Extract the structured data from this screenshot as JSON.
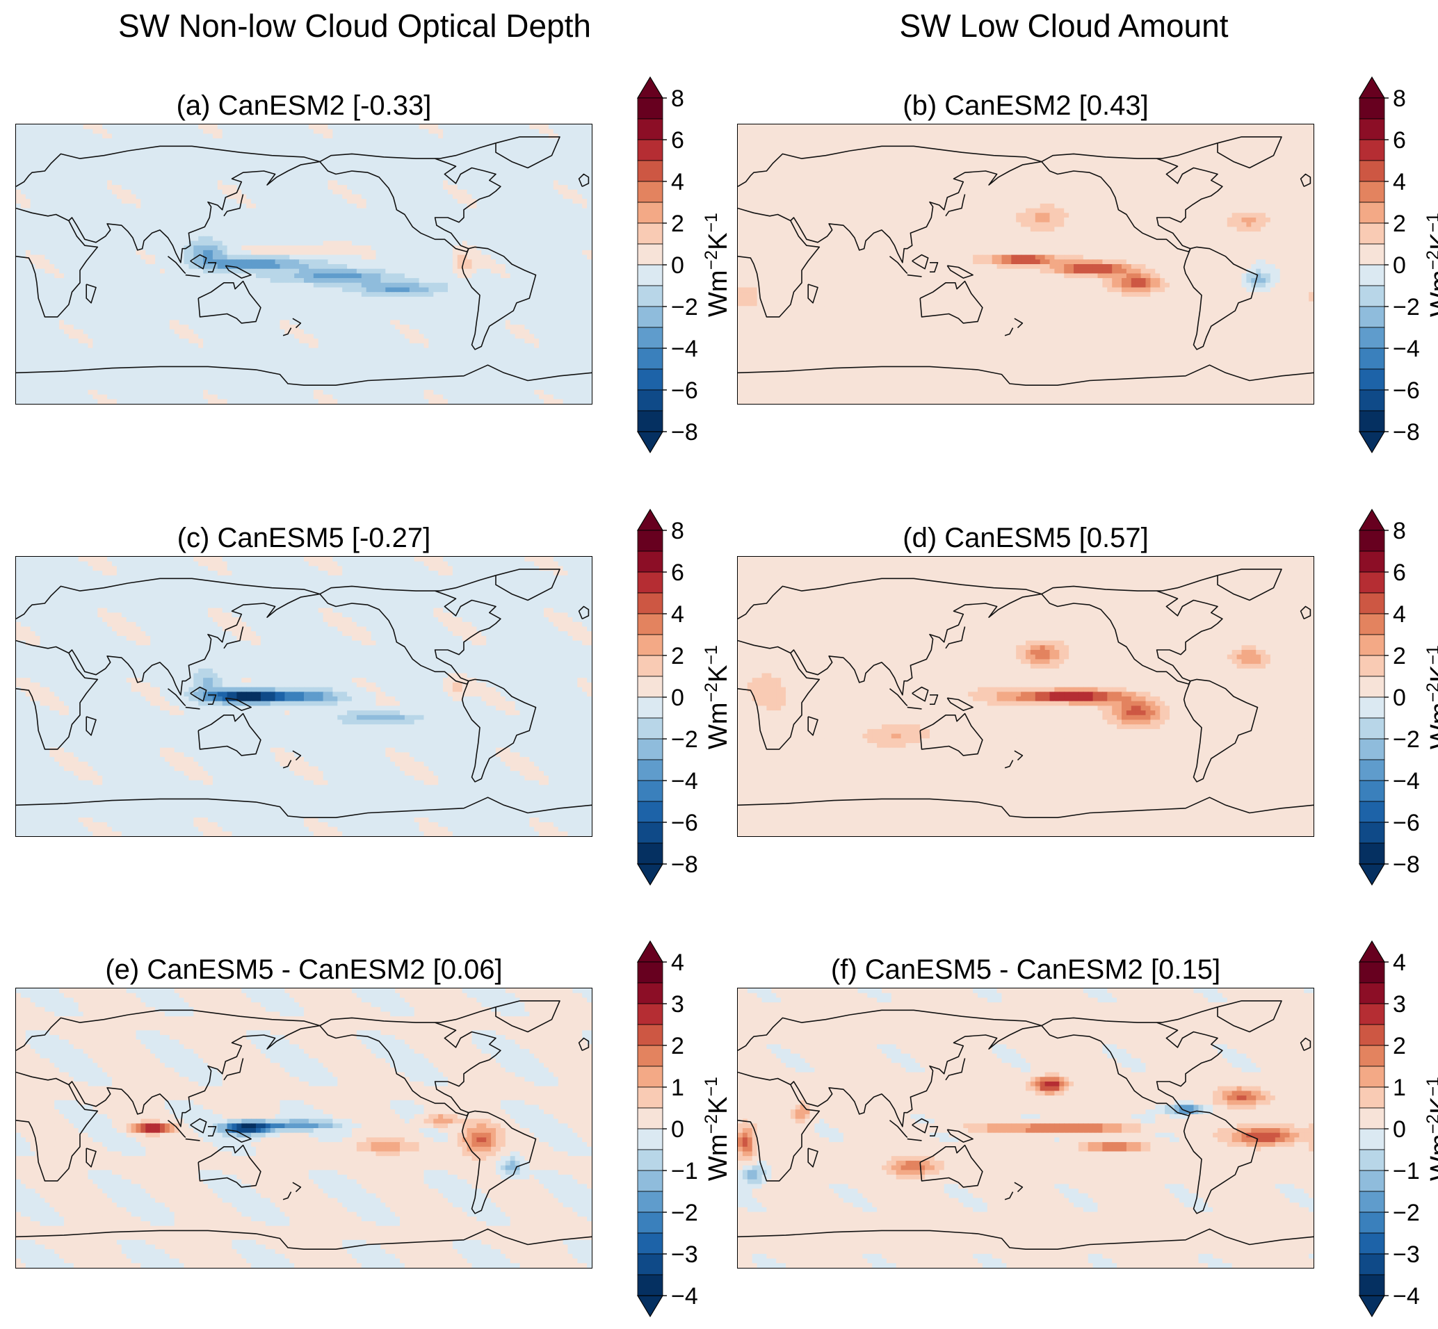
{
  "column_titles": {
    "left": "SW Non-low Cloud Optical Depth",
    "right": "SW Low Cloud Amount"
  },
  "colorbar_unit": {
    "base1": "Wm",
    "exp1": "−2",
    "base2": "K",
    "exp2": "−1"
  },
  "chart_data": [
    {
      "type": "heatmap",
      "title": "(a) CanESM2 [-0.33]",
      "model": "CanESM2",
      "global_mean": -0.33,
      "column": "SW Non-low Cloud Optical Depth",
      "colorbar_ticks": [
        "8",
        "6",
        "4",
        "2",
        "0",
        "−2",
        "−4",
        "−6",
        "−8"
      ],
      "colorbar_range": [
        -8,
        8
      ],
      "unit": "Wm⁻²K⁻¹",
      "colormap": "RdBu_r",
      "features": [
        {
          "lon": 150,
          "lat": 0,
          "value": -4,
          "spread_lon": 30,
          "spread_lat": 4
        },
        {
          "lon": 200,
          "lat": -8,
          "value": -3,
          "spread_lon": 40,
          "spread_lat": 5
        },
        {
          "lon": 240,
          "lat": -16,
          "value": -3,
          "spread_lon": 25,
          "spread_lat": 4
        },
        {
          "lon": 120,
          "lat": 8,
          "value": -2.5,
          "spread_lon": 12,
          "spread_lat": 8
        },
        {
          "lon": 180,
          "lat": 10,
          "value": 1.5,
          "spread_lon": 25,
          "spread_lat": 3
        },
        {
          "lon": 280,
          "lat": 0,
          "value": 2,
          "spread_lon": 6,
          "spread_lat": 8
        }
      ]
    },
    {
      "type": "heatmap",
      "title": "(b) CanESM2 [0.43]",
      "model": "CanESM2",
      "global_mean": 0.43,
      "column": "SW Low Cloud Amount",
      "colorbar_ticks": [
        "8",
        "6",
        "4",
        "2",
        "0",
        "−2",
        "−4",
        "−6",
        "−8"
      ],
      "colorbar_range": [
        -8,
        8
      ],
      "unit": "Wm⁻²K⁻¹",
      "colormap": "RdBu_r",
      "features": [
        {
          "lon": 180,
          "lat": 3,
          "value": 5.5,
          "spread_lon": 20,
          "spread_lat": 3
        },
        {
          "lon": 220,
          "lat": -3,
          "value": 5,
          "spread_lon": 25,
          "spread_lat": 4
        },
        {
          "lon": 250,
          "lat": -12,
          "value": 4,
          "spread_lon": 15,
          "spread_lat": 6
        },
        {
          "lon": 190,
          "lat": 30,
          "value": 2,
          "spread_lon": 15,
          "spread_lat": 8
        },
        {
          "lon": 320,
          "lat": 28,
          "value": 2,
          "spread_lon": 12,
          "spread_lat": 6
        },
        {
          "lon": 325,
          "lat": -10,
          "value": -3,
          "spread_lon": 8,
          "spread_lat": 6
        },
        {
          "lon": 5,
          "lat": -20,
          "value": 1.5,
          "spread_lon": 8,
          "spread_lat": 8
        }
      ]
    },
    {
      "type": "heatmap",
      "title": "(c) CanESM5 [-0.27]",
      "model": "CanESM5",
      "global_mean": -0.27,
      "column": "SW Non-low Cloud Optical Depth",
      "colorbar_ticks": [
        "8",
        "6",
        "4",
        "2",
        "0",
        "−2",
        "−4",
        "−6",
        "−8"
      ],
      "colorbar_range": [
        -8,
        8
      ],
      "unit": "Wm⁻²K⁻¹",
      "colormap": "RdBu_r",
      "features": [
        {
          "lon": 145,
          "lat": 0,
          "value": -8,
          "spread_lon": 25,
          "spread_lat": 4
        },
        {
          "lon": 180,
          "lat": 0,
          "value": -3,
          "spread_lon": 25,
          "spread_lat": 4
        },
        {
          "lon": 230,
          "lat": -14,
          "value": -2.5,
          "spread_lon": 25,
          "spread_lat": 4
        },
        {
          "lon": 120,
          "lat": 10,
          "value": -2,
          "spread_lon": 8,
          "spread_lat": 8
        },
        {
          "lon": 275,
          "lat": 5,
          "value": 1.5,
          "spread_lon": 6,
          "spread_lat": 6
        }
      ]
    },
    {
      "type": "heatmap",
      "title": "(d) CanESM5 [0.57]",
      "model": "CanESM5",
      "global_mean": 0.57,
      "column": "SW Low Cloud Amount",
      "colorbar_ticks": [
        "8",
        "6",
        "4",
        "2",
        "0",
        "−2",
        "−4",
        "−6",
        "−8"
      ],
      "colorbar_range": [
        -8,
        8
      ],
      "unit": "Wm⁻²K⁻¹",
      "colormap": "RdBu_r",
      "features": [
        {
          "lon": 205,
          "lat": 0,
          "value": 6,
          "spread_lon": 35,
          "spread_lat": 4
        },
        {
          "lon": 250,
          "lat": -10,
          "value": 4,
          "spread_lon": 15,
          "spread_lat": 8
        },
        {
          "lon": 190,
          "lat": 28,
          "value": 3.5,
          "spread_lon": 12,
          "spread_lat": 7
        },
        {
          "lon": 320,
          "lat": 25,
          "value": 2.5,
          "spread_lon": 10,
          "spread_lat": 6
        },
        {
          "lon": 100,
          "lat": -25,
          "value": 1.5,
          "spread_lon": 20,
          "spread_lat": 6
        },
        {
          "lon": 20,
          "lat": 5,
          "value": 1.2,
          "spread_lon": 10,
          "spread_lat": 10
        }
      ]
    },
    {
      "type": "heatmap",
      "title": "(e) CanESM5 - CanESM2 [0.06]",
      "model": "CanESM5 - CanESM2",
      "global_mean": 0.06,
      "column": "SW Non-low Cloud Optical Depth",
      "colorbar_ticks": [
        "4",
        "3",
        "2",
        "1",
        "0",
        "−1",
        "−2",
        "−3",
        "−4"
      ],
      "colorbar_range": [
        -4,
        4
      ],
      "unit": "Wm⁻²K⁻¹",
      "colormap": "RdBu_r",
      "features": [
        {
          "lon": 145,
          "lat": 0,
          "value": -4,
          "spread_lon": 15,
          "spread_lat": 4
        },
        {
          "lon": 175,
          "lat": 2,
          "value": -2,
          "spread_lon": 25,
          "spread_lat": 3
        },
        {
          "lon": 85,
          "lat": 0,
          "value": 3.5,
          "spread_lon": 12,
          "spread_lat": 3
        },
        {
          "lon": 290,
          "lat": -8,
          "value": 2,
          "spread_lon": 12,
          "spread_lat": 10
        },
        {
          "lon": 265,
          "lat": 5,
          "value": 1.5,
          "spread_lon": 10,
          "spread_lat": 4
        },
        {
          "lon": 230,
          "lat": -12,
          "value": 1.2,
          "spread_lon": 20,
          "spread_lat": 5
        },
        {
          "lon": 310,
          "lat": -25,
          "value": -1.5,
          "spread_lon": 6,
          "spread_lat": 6
        }
      ]
    },
    {
      "type": "heatmap",
      "title": "(f) CanESM5 - CanESM2 [0.15]",
      "model": "CanESM5 - CanESM2",
      "global_mean": 0.15,
      "column": "SW Low Cloud Amount",
      "colorbar_ticks": [
        "4",
        "3",
        "2",
        "1",
        "0",
        "−1",
        "−2",
        "−3",
        "−4"
      ],
      "colorbar_range": [
        -4,
        4
      ],
      "unit": "Wm⁻²K⁻¹",
      "colormap": "RdBu_r",
      "features": [
        {
          "lon": 200,
          "lat": 0,
          "value": 2.5,
          "spread_lon": 45,
          "spread_lat": 2.5
        },
        {
          "lon": 195,
          "lat": 28,
          "value": 3,
          "spread_lon": 10,
          "spread_lat": 5
        },
        {
          "lon": 330,
          "lat": -5,
          "value": 2.5,
          "spread_lon": 20,
          "spread_lat": 6
        },
        {
          "lon": 280,
          "lat": 12,
          "value": -2.5,
          "spread_lon": 12,
          "spread_lat": 3
        },
        {
          "lon": 315,
          "lat": 20,
          "value": 2,
          "spread_lon": 15,
          "spread_lat": 6
        },
        {
          "lon": 235,
          "lat": -12,
          "value": 2,
          "spread_lon": 20,
          "spread_lat": 3
        },
        {
          "lon": 110,
          "lat": -25,
          "value": 1.8,
          "spread_lon": 15,
          "spread_lat": 6
        },
        {
          "lon": 5,
          "lat": -10,
          "value": 2,
          "spread_lon": 6,
          "spread_lat": 10
        },
        {
          "lon": 10,
          "lat": -30,
          "value": -1.5,
          "spread_lon": 8,
          "spread_lat": 6
        },
        {
          "lon": 40,
          "lat": 10,
          "value": 1.5,
          "spread_lon": 6,
          "spread_lat": 6
        }
      ]
    }
  ]
}
